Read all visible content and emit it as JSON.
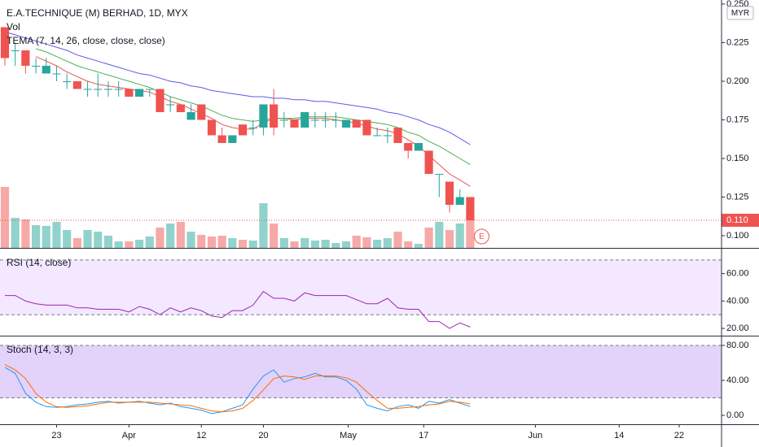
{
  "chart_data": [
    {
      "type": "candlestick",
      "title": "E.A.TECHNIQUE (M) BERHAD, 1D, MYX",
      "currency": "MYR",
      "open": [
        0.235,
        0.22,
        0.22,
        0.21,
        0.205,
        0.205,
        0.2,
        0.2,
        0.195,
        0.195,
        0.195,
        0.195,
        0.195,
        0.19,
        0.195,
        0.195,
        0.185,
        0.185,
        0.175,
        0.185,
        0.175,
        0.165,
        0.16,
        0.172,
        0.17,
        0.17,
        0.185,
        0.175,
        0.175,
        0.17,
        0.175,
        0.175,
        0.175,
        0.17,
        0.175,
        0.175,
        0.165,
        0.165,
        0.17,
        0.16,
        0.155,
        0.155,
        0.14,
        0.135,
        0.12,
        0.125
      ],
      "high": [
        0.235,
        0.225,
        0.22,
        0.215,
        0.215,
        0.21,
        0.205,
        0.2,
        0.2,
        0.205,
        0.2,
        0.2,
        0.195,
        0.195,
        0.195,
        0.195,
        0.19,
        0.185,
        0.185,
        0.185,
        0.175,
        0.17,
        0.165,
        0.172,
        0.175,
        0.185,
        0.195,
        0.18,
        0.175,
        0.18,
        0.18,
        0.18,
        0.18,
        0.175,
        0.175,
        0.175,
        0.17,
        0.17,
        0.17,
        0.16,
        0.16,
        0.155,
        0.14,
        0.135,
        0.13,
        0.125
      ],
      "low": [
        0.21,
        0.21,
        0.205,
        0.205,
        0.205,
        0.2,
        0.195,
        0.195,
        0.19,
        0.19,
        0.19,
        0.19,
        0.19,
        0.19,
        0.19,
        0.18,
        0.18,
        0.18,
        0.175,
        0.175,
        0.165,
        0.16,
        0.16,
        0.165,
        0.165,
        0.165,
        0.165,
        0.17,
        0.17,
        0.17,
        0.17,
        0.17,
        0.17,
        0.17,
        0.17,
        0.165,
        0.165,
        0.16,
        0.16,
        0.15,
        0.155,
        0.14,
        0.125,
        0.115,
        0.12,
        0.11
      ],
      "close": [
        0.215,
        0.22,
        0.21,
        0.21,
        0.21,
        0.205,
        0.2,
        0.195,
        0.195,
        0.195,
        0.195,
        0.195,
        0.19,
        0.195,
        0.195,
        0.18,
        0.185,
        0.18,
        0.18,
        0.175,
        0.165,
        0.16,
        0.165,
        0.165,
        0.17,
        0.185,
        0.17,
        0.175,
        0.17,
        0.18,
        0.175,
        0.175,
        0.175,
        0.175,
        0.17,
        0.165,
        0.165,
        0.165,
        0.16,
        0.155,
        0.16,
        0.14,
        0.14,
        0.12,
        0.125,
        0.11
      ],
      "up_color": "#26a69a",
      "down_color": "#ef5350",
      "volume": {
        "label": "Vol",
        "ylim": [
          0,
          305
        ],
        "values": [
          75,
          37,
          35,
          28,
          27,
          32,
          22,
          12,
          22,
          20,
          15,
          8,
          8,
          10,
          14,
          25,
          30,
          32,
          20,
          16,
          14,
          15,
          12,
          10,
          9,
          55,
          30,
          12,
          8,
          12,
          9,
          10,
          6,
          8,
          15,
          13,
          10,
          12,
          20,
          8,
          5,
          25,
          32,
          22,
          30,
          45
        ]
      },
      "indicator": "TEMA (7, 14, 26, close, close, close)",
      "series": [
        {
          "color": "#ef5350",
          "values": [
            null,
            null,
            null,
            0.216,
            0.213,
            0.21,
            0.206,
            0.203,
            0.2,
            0.198,
            0.197,
            0.196,
            0.195,
            0.194,
            0.193,
            0.19,
            0.187,
            0.185,
            0.182,
            0.179,
            0.176,
            0.172,
            0.17,
            0.169,
            0.169,
            0.173,
            0.176,
            0.176,
            0.175,
            0.176,
            0.176,
            0.176,
            0.175,
            0.174,
            0.173,
            0.171,
            0.169,
            0.168,
            0.166,
            0.162,
            0.158,
            0.152,
            0.146,
            0.14,
            0.136,
            0.132
          ]
        },
        {
          "color": "#4caf50",
          "values": [
            null,
            null,
            null,
            0.221,
            0.219,
            0.216,
            0.213,
            0.21,
            0.208,
            0.206,
            0.204,
            0.202,
            0.2,
            0.198,
            0.196,
            0.193,
            0.19,
            0.188,
            0.186,
            0.184,
            0.181,
            0.178,
            0.176,
            0.175,
            0.174,
            0.175,
            0.176,
            0.176,
            0.176,
            0.177,
            0.177,
            0.177,
            0.177,
            0.176,
            0.175,
            0.174,
            0.173,
            0.172,
            0.17,
            0.167,
            0.165,
            0.161,
            0.158,
            0.154,
            0.15,
            0.146
          ]
        },
        {
          "color": "#5b5bea",
          "values": [
            0.232,
            0.23,
            0.228,
            0.226,
            0.224,
            0.222,
            0.22,
            0.217,
            0.215,
            0.213,
            0.211,
            0.209,
            0.207,
            0.205,
            0.204,
            0.202,
            0.2,
            0.199,
            0.197,
            0.196,
            0.194,
            0.193,
            0.192,
            0.191,
            0.19,
            0.19,
            0.189,
            0.189,
            0.188,
            0.188,
            0.187,
            0.187,
            0.186,
            0.185,
            0.184,
            0.183,
            0.182,
            0.18,
            0.179,
            0.177,
            0.175,
            0.172,
            0.17,
            0.167,
            0.163,
            0.159
          ]
        }
      ],
      "last_price": {
        "value": 0.11,
        "label": "0.110"
      },
      "event_marker": "E",
      "ylim": [
        0.0921,
        0.2526
      ],
      "yticks": [
        {
          "value": 0.25,
          "label": "0.250"
        },
        0.225,
        {
          "value": 0.2,
          "label": "0.200"
        },
        0.175,
        {
          "value": 0.15,
          "label": "0.150"
        },
        0.125,
        {
          "value": 0.1,
          "label": "0.100"
        }
      ],
      "xlim": [
        -0.47,
        69.3
      ],
      "xticks": [
        {
          "value": 5,
          "label": "23"
        },
        {
          "value": 12,
          "label": "Apr"
        },
        {
          "value": 19,
          "label": "12"
        },
        {
          "value": 25,
          "label": "20"
        },
        {
          "value": 33.2,
          "label": "May"
        },
        {
          "value": 40.5,
          "label": "17"
        },
        {
          "value": 51.3,
          "label": "Jun"
        },
        {
          "value": 59.4,
          "label": "14"
        },
        {
          "value": 65.2,
          "label": "22"
        }
      ]
    },
    {
      "type": "line",
      "title": "RSI (14, close)",
      "band": [
        30,
        70
      ],
      "band_color": "#f3e8ff",
      "series": [
        {
          "color": "#9c27b0",
          "values": [
            44,
            44,
            40,
            38,
            37,
            37,
            37,
            35,
            35,
            34,
            34,
            34,
            32,
            36,
            34,
            30,
            35,
            32,
            35,
            33,
            29,
            28,
            33,
            33,
            37,
            47,
            42,
            42,
            40,
            46,
            44,
            44,
            44,
            44,
            41,
            38,
            38,
            42,
            35,
            34,
            34,
            25,
            25,
            20,
            24,
            21
          ]
        }
      ],
      "ylim": [
        14.7,
        78.2
      ],
      "yticks": [
        {
          "value": 60,
          "label": "60.00"
        },
        {
          "value": 40,
          "label": "40.00"
        },
        {
          "value": 20,
          "label": "20.00"
        }
      ]
    },
    {
      "type": "line",
      "title": "Stoch (14, 3, 3)",
      "band": [
        20,
        80
      ],
      "band_color": "#e3d2fa",
      "series": [
        {
          "color": "#2196f3",
          "values": [
            55,
            48,
            25,
            15,
            10,
            9,
            10,
            12,
            13,
            15,
            16,
            14,
            15,
            16,
            14,
            12,
            14,
            10,
            8,
            6,
            2,
            4,
            8,
            12,
            30,
            45,
            52,
            38,
            42,
            44,
            48,
            44,
            44,
            40,
            30,
            12,
            8,
            5,
            10,
            12,
            8,
            16,
            14,
            18,
            14,
            10
          ]
        },
        {
          "color": "#ff6d00",
          "values": [
            58,
            52,
            42,
            25,
            15,
            10,
            9,
            10,
            11,
            13,
            15,
            15,
            15,
            15,
            15,
            14,
            13,
            12,
            11,
            8,
            5,
            4,
            5,
            8,
            17,
            29,
            42,
            45,
            44,
            41,
            45,
            45,
            45,
            43,
            38,
            27,
            17,
            8,
            8,
            9,
            10,
            12,
            13,
            16,
            15,
            13
          ]
        }
      ],
      "ylim": [
        -10.2,
        90.2
      ],
      "yticks": [
        {
          "value": 80,
          "label": "80.00"
        },
        {
          "value": 40,
          "label": "40.00"
        },
        {
          "value": 0,
          "label": "0.00"
        }
      ]
    }
  ]
}
